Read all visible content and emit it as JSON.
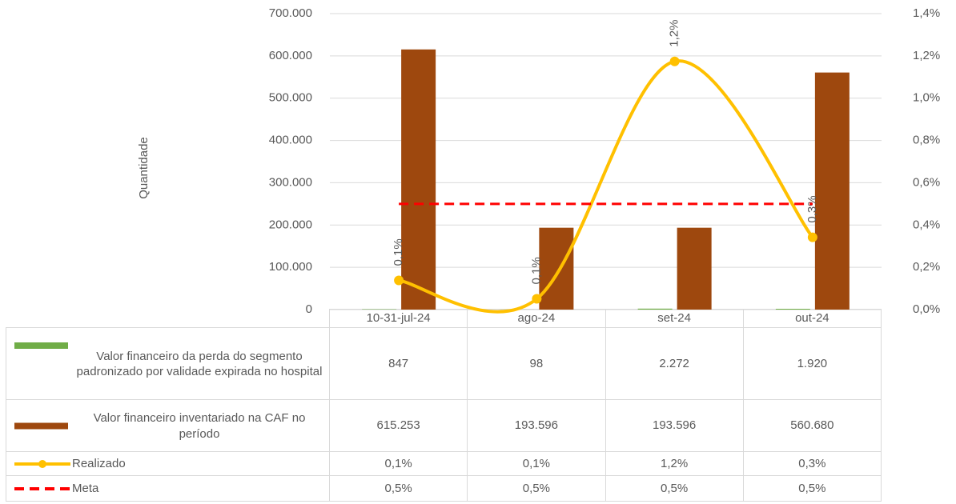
{
  "chart_data": {
    "type": "bar",
    "y_axis_label": "Quantidade",
    "categories": [
      "10-31-jul-24",
      "ago-24",
      "set-24",
      "out-24"
    ],
    "ylim": [
      0,
      700000
    ],
    "yticks": [
      {
        "value": 0,
        "label": "0"
      },
      {
        "value": 100000,
        "label": "100.000"
      },
      {
        "value": 200000,
        "label": "200.000"
      },
      {
        "value": 300000,
        "label": "300.000"
      },
      {
        "value": 400000,
        "label": "400.000"
      },
      {
        "value": 500000,
        "label": "500.000"
      },
      {
        "value": 600000,
        "label": "600.000"
      },
      {
        "value": 700000,
        "label": "700.000"
      }
    ],
    "y2lim": [
      0,
      1.4
    ],
    "y2ticks": [
      {
        "value": 0,
        "label": "0,0%"
      },
      {
        "value": 0.2,
        "label": "0,2%"
      },
      {
        "value": 0.4,
        "label": "0,4%"
      },
      {
        "value": 0.6,
        "label": "0,6%"
      },
      {
        "value": 0.8,
        "label": "0,8%"
      },
      {
        "value": 1.0,
        "label": "1,0%"
      },
      {
        "value": 1.2,
        "label": "1,2%"
      },
      {
        "value": 1.4,
        "label": "1,4%"
      }
    ],
    "series": [
      {
        "name": "Valor financeiro da perda do segmento padronizado por validade expirada no hospital",
        "type": "bar",
        "color": "#70ad47",
        "values": [
          847,
          98,
          2272,
          1920
        ],
        "value_labels": [
          "847",
          "98",
          "2.272",
          "1.920"
        ]
      },
      {
        "name": "Valor financeiro inventariado na CAF no período",
        "type": "bar",
        "color": "#9e480e",
        "values": [
          615253,
          193596,
          193596,
          560680
        ],
        "value_labels": [
          "615.253",
          "193.596",
          "193.596",
          "560.680"
        ]
      },
      {
        "name": "Realizado",
        "type": "line",
        "axis": "y2",
        "color": "#ffc000",
        "smooth": true,
        "markers": true,
        "show_labels": true,
        "values": [
          0.138,
          0.051,
          1.174,
          0.342
        ],
        "value_labels": [
          "0,1%",
          "0,1%",
          "1,2%",
          "0,3%"
        ]
      },
      {
        "name": "Meta",
        "type": "line",
        "axis": "y2",
        "color": "#ff0000",
        "dashed": true,
        "values": [
          0.5,
          0.5,
          0.5,
          0.5
        ],
        "value_labels": [
          "0,5%",
          "0,5%",
          "0,5%",
          "0,5%"
        ]
      }
    ]
  }
}
